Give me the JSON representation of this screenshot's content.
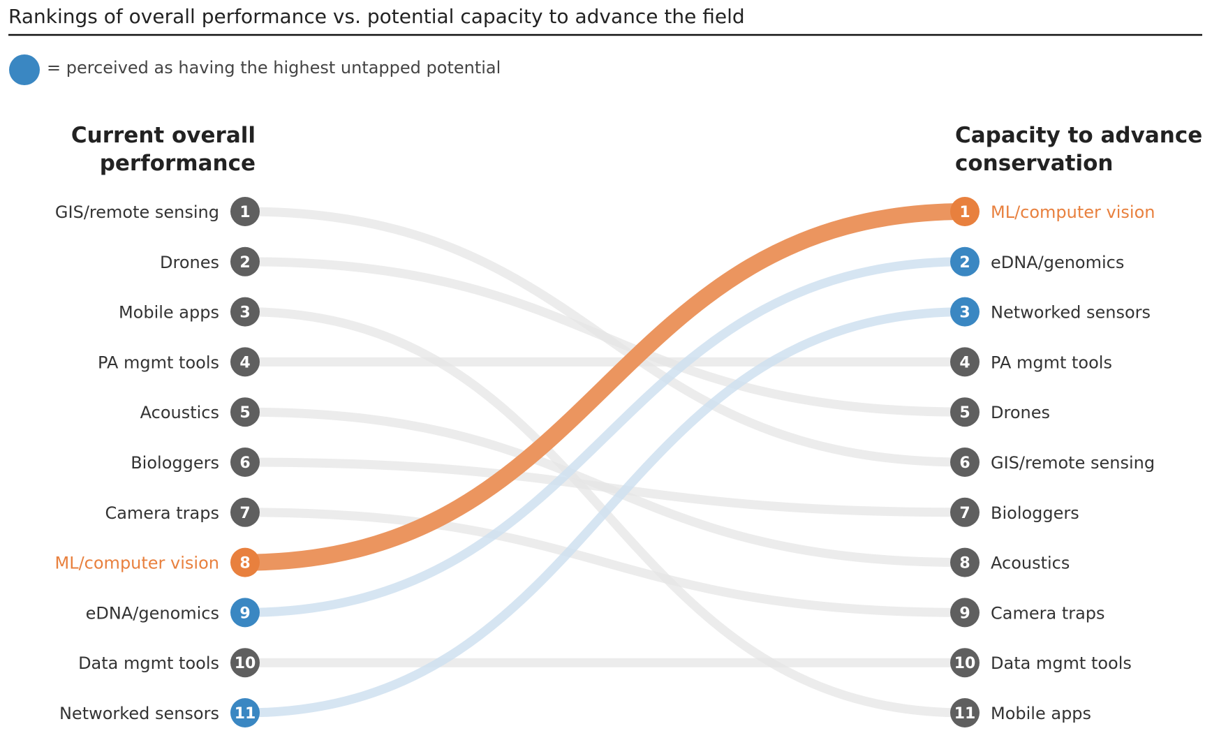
{
  "title": "Rankings of overall performance vs. potential capacity to advance the field",
  "legend": {
    "text": "= perceived as having the highest untapped potential",
    "color": "#3a87c2"
  },
  "colors": {
    "gray_circle": "#5f5f5f",
    "gray_line": "#e6e6e6",
    "blue": "#3a87c2",
    "blue_line": "#cfe1f0",
    "orange": "#e8803e",
    "orange_line": "#eb955f",
    "label_text": "#333333",
    "title_rule": "#111111"
  },
  "chart_data": {
    "type": "slope",
    "left_heading": [
      "Current overall",
      "performance"
    ],
    "right_heading": [
      "Capacity to advance",
      "conservation"
    ],
    "ranks": [
      1,
      2,
      3,
      4,
      5,
      6,
      7,
      8,
      9,
      10,
      11
    ],
    "items": [
      {
        "name": "GIS/remote sensing",
        "left_rank": 1,
        "right_rank": 6,
        "group": "gray"
      },
      {
        "name": "Drones",
        "left_rank": 2,
        "right_rank": 5,
        "group": "gray"
      },
      {
        "name": "Mobile apps",
        "left_rank": 3,
        "right_rank": 11,
        "group": "gray"
      },
      {
        "name": "PA mgmt tools",
        "left_rank": 4,
        "right_rank": 4,
        "group": "gray"
      },
      {
        "name": "Acoustics",
        "left_rank": 5,
        "right_rank": 8,
        "group": "gray"
      },
      {
        "name": "Biologgers",
        "left_rank": 6,
        "right_rank": 7,
        "group": "gray"
      },
      {
        "name": "Camera traps",
        "left_rank": 7,
        "right_rank": 9,
        "group": "gray"
      },
      {
        "name": "ML/computer vision",
        "left_rank": 8,
        "right_rank": 1,
        "group": "orange"
      },
      {
        "name": "eDNA/genomics",
        "left_rank": 9,
        "right_rank": 2,
        "group": "blue"
      },
      {
        "name": "Data mgmt tools",
        "left_rank": 10,
        "right_rank": 10,
        "group": "gray"
      },
      {
        "name": "Networked sensors",
        "left_rank": 11,
        "right_rank": 3,
        "group": "blue"
      }
    ]
  }
}
